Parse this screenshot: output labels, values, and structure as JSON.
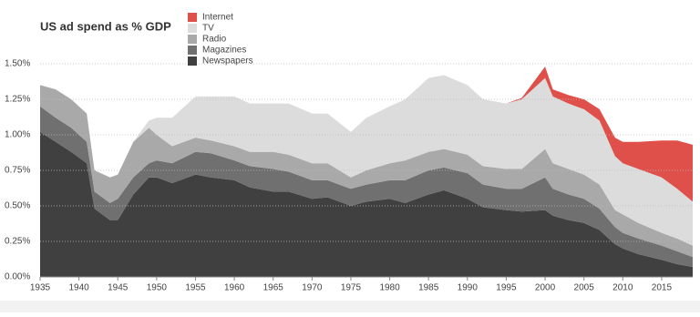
{
  "chart_data": {
    "type": "stacked-area",
    "title": "US ad spend as % GDP",
    "x": [
      1935,
      1937,
      1939,
      1941,
      1942,
      1944,
      1945,
      1947,
      1949,
      1950,
      1952,
      1955,
      1957,
      1960,
      1962,
      1965,
      1967,
      1970,
      1972,
      1975,
      1977,
      1980,
      1982,
      1985,
      1987,
      1990,
      1992,
      1995,
      1997,
      2000,
      2001,
      2003,
      2005,
      2007,
      2009,
      2010,
      2012,
      2015,
      2017,
      2019
    ],
    "series": [
      {
        "name": "Internet",
        "color": "#e0504a",
        "values": [
          0,
          0,
          0,
          0,
          0,
          0,
          0,
          0,
          0,
          0,
          0,
          0,
          0,
          0,
          0,
          0,
          0,
          0,
          0,
          0,
          0,
          0,
          0,
          0,
          0,
          0,
          0,
          0,
          0.01,
          0.08,
          0.05,
          0.06,
          0.07,
          0.08,
          0.13,
          0.15,
          0.19,
          0.26,
          0.34,
          0.4
        ]
      },
      {
        "name": "TV",
        "color": "#dcdcdc",
        "values": [
          0,
          0,
          0,
          0,
          0,
          0,
          0,
          0,
          0.05,
          0.12,
          0.2,
          0.29,
          0.31,
          0.35,
          0.34,
          0.34,
          0.36,
          0.35,
          0.35,
          0.32,
          0.37,
          0.4,
          0.43,
          0.52,
          0.52,
          0.49,
          0.47,
          0.46,
          0.49,
          0.5,
          0.47,
          0.46,
          0.46,
          0.45,
          0.38,
          0.36,
          0.38,
          0.39,
          0.35,
          0.31
        ]
      },
      {
        "name": "Radio",
        "color": "#a9a9a9",
        "values": [
          0.15,
          0.2,
          0.2,
          0.2,
          0.15,
          0.18,
          0.17,
          0.25,
          0.25,
          0.18,
          0.12,
          0.1,
          0.09,
          0.1,
          0.1,
          0.12,
          0.12,
          0.12,
          0.12,
          0.08,
          0.1,
          0.12,
          0.14,
          0.13,
          0.13,
          0.13,
          0.13,
          0.14,
          0.14,
          0.2,
          0.18,
          0.18,
          0.17,
          0.17,
          0.12,
          0.13,
          0.11,
          0.09,
          0.09,
          0.08
        ]
      },
      {
        "name": "Magazines",
        "color": "#707070",
        "values": [
          0.18,
          0.17,
          0.17,
          0.15,
          0.12,
          0.12,
          0.15,
          0.12,
          0.1,
          0.12,
          0.14,
          0.16,
          0.17,
          0.14,
          0.15,
          0.16,
          0.14,
          0.13,
          0.12,
          0.12,
          0.12,
          0.13,
          0.16,
          0.17,
          0.16,
          0.18,
          0.16,
          0.15,
          0.16,
          0.23,
          0.19,
          0.18,
          0.17,
          0.15,
          0.12,
          0.11,
          0.11,
          0.1,
          0.09,
          0.07
        ]
      },
      {
        "name": "Newspapers",
        "color": "#404040",
        "values": [
          1.02,
          0.95,
          0.88,
          0.8,
          0.48,
          0.4,
          0.4,
          0.58,
          0.7,
          0.7,
          0.66,
          0.72,
          0.7,
          0.68,
          0.63,
          0.6,
          0.6,
          0.55,
          0.56,
          0.5,
          0.53,
          0.55,
          0.52,
          0.58,
          0.61,
          0.55,
          0.49,
          0.47,
          0.46,
          0.47,
          0.43,
          0.4,
          0.38,
          0.33,
          0.23,
          0.2,
          0.16,
          0.12,
          0.09,
          0.07
        ]
      }
    ],
    "xlim": [
      1935,
      2019
    ],
    "xticks": [
      1935,
      1940,
      1945,
      1950,
      1955,
      1960,
      1965,
      1970,
      1975,
      1980,
      1985,
      1990,
      1995,
      2000,
      2005,
      2010,
      2015
    ],
    "ylim": [
      0,
      1.5
    ],
    "yticks": [
      {
        "value": 0,
        "label": "0.00%"
      },
      {
        "value": 0.25,
        "label": "0.25%"
      },
      {
        "value": 0.5,
        "label": "0.50%"
      },
      {
        "value": 0.75,
        "label": "0.75%"
      },
      {
        "value": 1,
        "label": "1.00%"
      },
      {
        "value": 1.25,
        "label": "1.25%"
      },
      {
        "value": 1.5,
        "label": "1.50%"
      }
    ],
    "grid": true
  }
}
